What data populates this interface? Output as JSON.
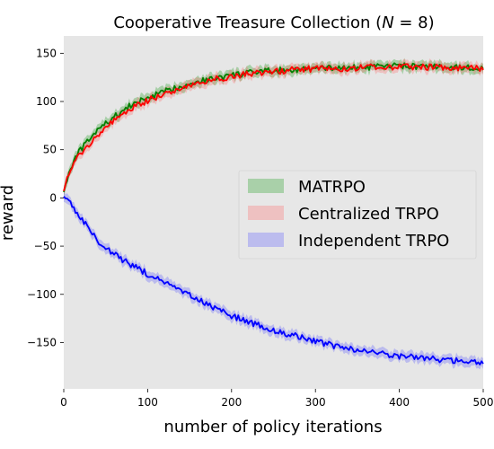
{
  "chart_data": {
    "type": "line",
    "title": "Cooperative Treasure Collection (N = 8)",
    "title_parts": {
      "pre": "Cooperative Treasure Collection (",
      "var": "N",
      "post": " = 8)"
    },
    "xlabel": "number of policy iterations",
    "ylabel": "reward",
    "xlim": [
      0,
      500
    ],
    "ylim": [
      -198,
      168
    ],
    "xticks": [
      0,
      100,
      200,
      300,
      400,
      500
    ],
    "yticks": [
      -150,
      -100,
      -50,
      0,
      50,
      100,
      150
    ],
    "grid": false,
    "background": "#e6e6e6",
    "legend_position": "center-right",
    "x": [
      0,
      10,
      20,
      30,
      40,
      50,
      60,
      70,
      80,
      90,
      100,
      120,
      140,
      160,
      180,
      200,
      225,
      250,
      275,
      300,
      325,
      350,
      375,
      400,
      425,
      450,
      475,
      500
    ],
    "series": [
      {
        "name": "MATRPO",
        "color": "#008000",
        "band_color": "#1a9a1a",
        "values": [
          8,
          35,
          50,
          60,
          70,
          77,
          84,
          90,
          96,
          100,
          104,
          110,
          116,
          121,
          124,
          127,
          130,
          132,
          133,
          134,
          135,
          135,
          136,
          137,
          136,
          136,
          135,
          135
        ]
      },
      {
        "name": "Centralized TRPO",
        "color": "#ff0000",
        "band_color": "#ff6a6a",
        "values": [
          10,
          32,
          46,
          56,
          65,
          73,
          80,
          86,
          92,
          97,
          101,
          108,
          114,
          119,
          123,
          126,
          129,
          131,
          133,
          134,
          134,
          135,
          136,
          136,
          136,
          135,
          135,
          134
        ]
      },
      {
        "name": "Independent TRPO",
        "color": "#0000ff",
        "band_color": "#5a5aff",
        "values": [
          3,
          -8,
          -20,
          -33,
          -44,
          -52,
          -58,
          -64,
          -69,
          -74,
          -79,
          -88,
          -97,
          -106,
          -114,
          -122,
          -130,
          -137,
          -143,
          -149,
          -154,
          -158,
          -161,
          -164,
          -166,
          -168,
          -169,
          -170
        ]
      }
    ]
  }
}
